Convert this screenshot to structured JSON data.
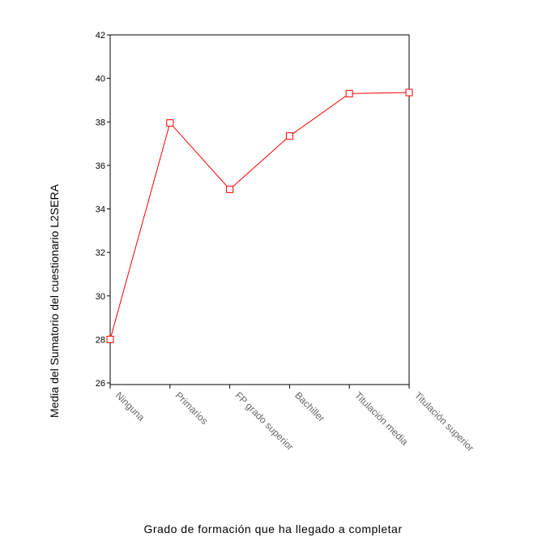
{
  "chart_data": {
    "type": "line",
    "x_label": "Grado de formación que ha llegado a completar",
    "y_label": "Media del Sumatorio del cuestionario L2SERA",
    "categories": [
      "Ninguna",
      "Primarios",
      "FP grado superior",
      "Bachiller",
      "Titulación media",
      "Titulación superior"
    ],
    "series": [
      {
        "name": null,
        "color": "#ff0000",
        "values": [
          28,
          37.95,
          34.9,
          37.35,
          39.3,
          39.35
        ]
      }
    ],
    "ylim": [
      26,
      42
    ],
    "yticks": [
      26,
      28,
      30,
      32,
      34,
      36,
      38,
      40,
      42
    ],
    "grid": false
  }
}
